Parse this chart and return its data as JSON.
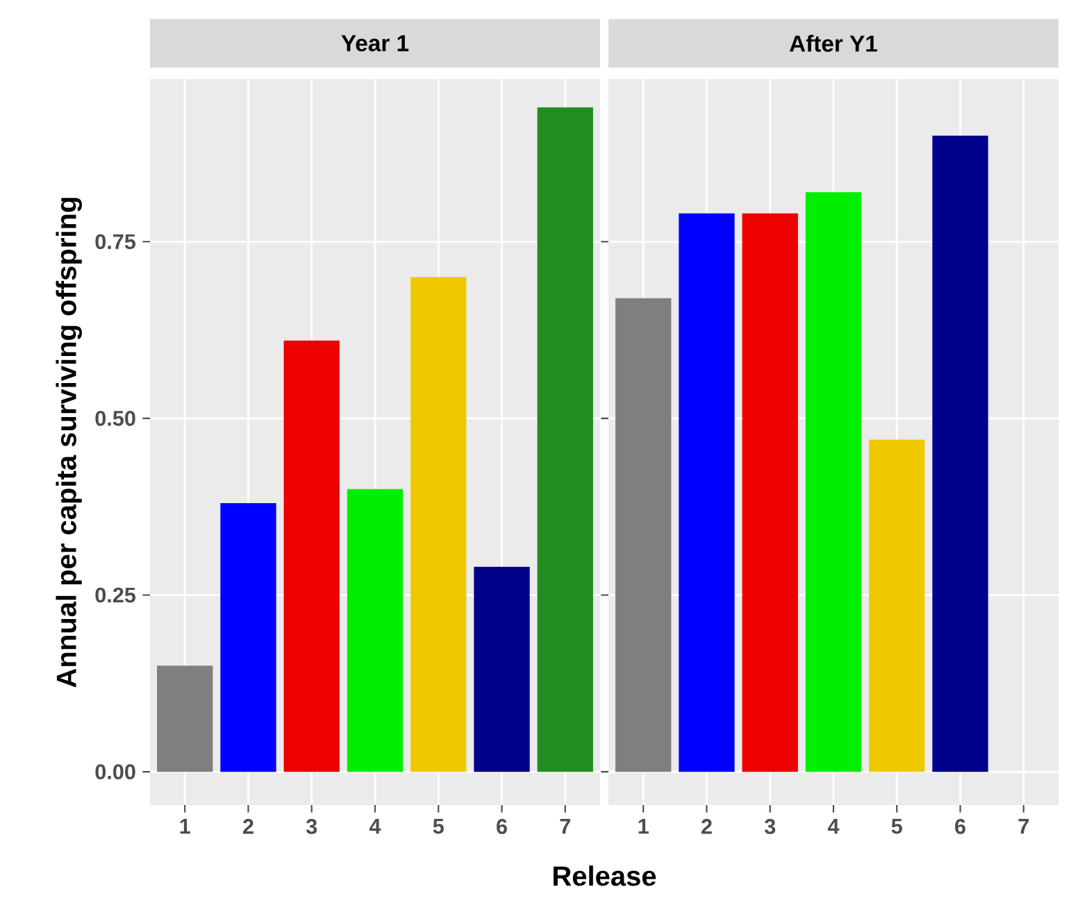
{
  "chart_data": [
    {
      "type": "bar",
      "title": "Year 1",
      "ylabel": "Annual per capita surviving offspring",
      "xlabel": "Release",
      "categories": [
        "1",
        "2",
        "3",
        "4",
        "5",
        "6",
        "7"
      ],
      "values": [
        0.15,
        0.38,
        0.61,
        0.4,
        0.7,
        0.29,
        0.94
      ],
      "colors": [
        "#7f7f7f",
        "#0000ff",
        "#ee0000",
        "#00ee00",
        "#eec900",
        "#00008b",
        "#228b22"
      ],
      "ylim": [
        -0.047,
        0.98
      ],
      "yticks": [
        {
          "value": 0,
          "label": "0.00"
        },
        {
          "value": 0.25,
          "label": "0.25"
        },
        {
          "value": 0.5,
          "label": "0.50"
        },
        {
          "value": 0.75,
          "label": "0.75"
        }
      ],
      "grid": true
    },
    {
      "type": "bar",
      "title": "After Y1",
      "categories": [
        "1",
        "2",
        "3",
        "4",
        "5",
        "6",
        "7"
      ],
      "values": [
        0.67,
        0.79,
        0.79,
        0.82,
        0.47,
        0.9,
        null
      ],
      "colors": [
        "#7f7f7f",
        "#0000ff",
        "#ee0000",
        "#00ee00",
        "#eec900",
        "#00008b",
        "#228b22"
      ],
      "ylim": [
        -0.047,
        0.98
      ],
      "yticks": [
        {
          "value": 0,
          "label": null
        },
        {
          "value": 0.25,
          "label": null
        },
        {
          "value": 0.5,
          "label": null
        },
        {
          "value": 0.75,
          "label": null
        }
      ],
      "grid": true,
      "tick_labels": "x"
    }
  ]
}
